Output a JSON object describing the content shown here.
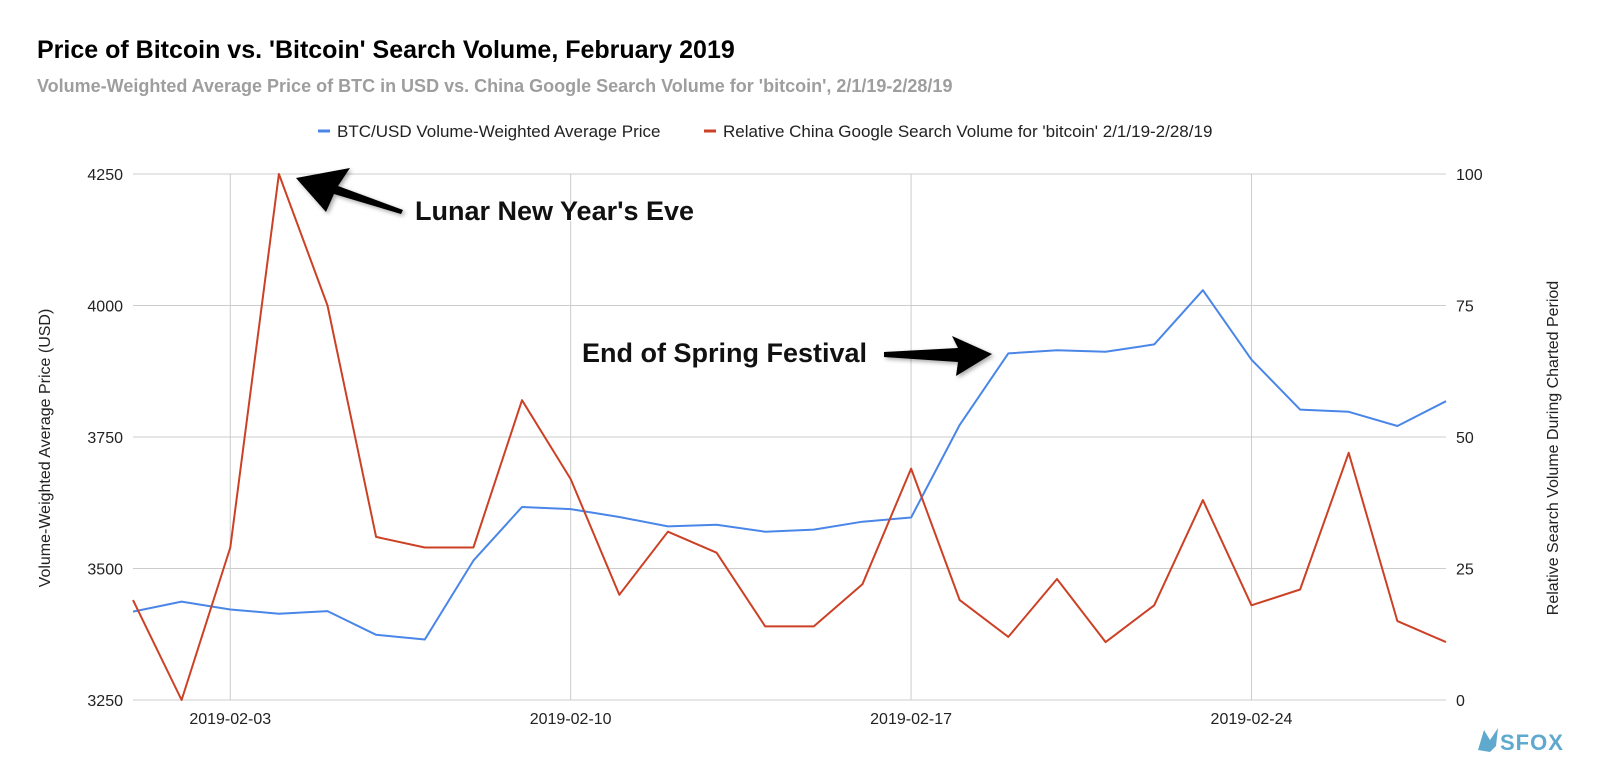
{
  "chart_data": {
    "type": "line",
    "title": "Price of Bitcoin vs. 'Bitcoin' Search Volume, February 2019",
    "subtitle": "Volume-Weighted Average Price of BTC in USD vs. China Google Search Volume for 'bitcoin', 2/1/19-2/28/19",
    "x_tick_labels": [
      "2019-02-03",
      "2019-02-10",
      "2019-02-17",
      "2019-02-24"
    ],
    "x_dates": [
      "2019-02-01",
      "2019-02-02",
      "2019-02-03",
      "2019-02-04",
      "2019-02-05",
      "2019-02-06",
      "2019-02-07",
      "2019-02-08",
      "2019-02-09",
      "2019-02-10",
      "2019-02-11",
      "2019-02-12",
      "2019-02-13",
      "2019-02-14",
      "2019-02-15",
      "2019-02-16",
      "2019-02-17",
      "2019-02-18",
      "2019-02-19",
      "2019-02-20",
      "2019-02-21",
      "2019-02-22",
      "2019-02-23",
      "2019-02-24",
      "2019-02-25",
      "2019-02-26",
      "2019-02-27",
      "2019-02-28"
    ],
    "left_axis": {
      "label": "Volume-Weighted Average Price (USD)",
      "ylim": [
        3250,
        4250
      ],
      "ticks": [
        "3250",
        "3500",
        "3750",
        "4000",
        "4250"
      ]
    },
    "right_axis": {
      "label": "Relative Search Volume During Charted Period",
      "ylim": [
        0,
        100
      ],
      "ticks": [
        "0",
        "25",
        "50",
        "75",
        "100"
      ]
    },
    "grid": true,
    "legend_position": "top",
    "series": [
      {
        "name": "BTC/USD Volume-Weighted Average Price",
        "axis": "left",
        "color": "#4a86e8",
        "values": [
          3418,
          3437,
          3422,
          3414,
          3419,
          3374,
          3365,
          3515,
          3617,
          3613,
          3598,
          3580,
          3583,
          3570,
          3574,
          3589,
          3597,
          3773,
          3909,
          3915,
          3912,
          3926,
          4029,
          3897,
          3802,
          3798,
          3771,
          3818
        ]
      },
      {
        "name": "Relative China Google Search Volume for 'bitcoin' 2/1/19-2/28/19",
        "axis": "right",
        "color": "#cc4125",
        "values": [
          19,
          0,
          29,
          100,
          75,
          31,
          29,
          29,
          57,
          42,
          20,
          32,
          28,
          14,
          14,
          22,
          44,
          19,
          12,
          23,
          11,
          18,
          38,
          18,
          21,
          47,
          15,
          11
        ]
      }
    ],
    "annotations": [
      {
        "text": "Lunar New Year's Eve",
        "date": "2019-02-04"
      },
      {
        "text": "End of Spring Festival",
        "date": "2019-02-19"
      }
    ]
  },
  "brand": {
    "name": "SFOX"
  }
}
